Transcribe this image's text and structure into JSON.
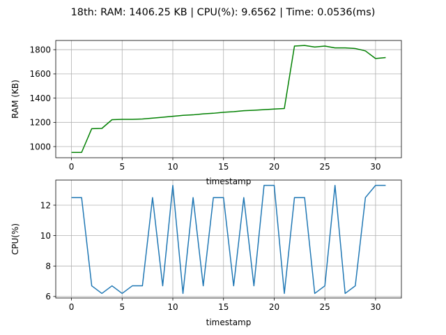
{
  "figure": {
    "title": "18th: RAM: 1406.25 KB | CPU(%): 9.6562 | Time: 0.0536(ms)"
  },
  "chart_data": [
    {
      "type": "line",
      "xlabel": "timestamp",
      "ylabel": "RAM (KB)",
      "xlim": [
        -1.55,
        32.55
      ],
      "ylim": [
        908,
        1876
      ],
      "xticks": [
        0,
        5,
        10,
        15,
        20,
        25,
        30
      ],
      "yticks": [
        1000,
        1200,
        1400,
        1600,
        1800
      ],
      "grid": true,
      "color": "#008000",
      "x": [
        0,
        1,
        2,
        3,
        4,
        5,
        6,
        7,
        8,
        9,
        10,
        11,
        12,
        13,
        14,
        15,
        16,
        17,
        18,
        19,
        20,
        21,
        22,
        23,
        24,
        25,
        26,
        27,
        28,
        29,
        30,
        31
      ],
      "values": [
        952,
        952,
        1148,
        1150,
        1222,
        1225,
        1225,
        1228,
        1235,
        1242,
        1250,
        1258,
        1262,
        1270,
        1275,
        1283,
        1288,
        1296,
        1300,
        1305,
        1310,
        1314,
        1830,
        1835,
        1822,
        1830,
        1815,
        1815,
        1810,
        1790,
        1727,
        1735
      ]
    },
    {
      "type": "line",
      "xlabel": "timestamp",
      "ylabel": "CPU(%)",
      "xlim": [
        -1.55,
        32.55
      ],
      "ylim": [
        5.9,
        13.65
      ],
      "xticks": [
        0,
        5,
        10,
        15,
        20,
        25,
        30
      ],
      "yticks": [
        6,
        8,
        10,
        12
      ],
      "grid": true,
      "color": "#1f77b4",
      "x": [
        0,
        1,
        2,
        3,
        4,
        5,
        6,
        7,
        8,
        9,
        10,
        11,
        12,
        13,
        14,
        15,
        16,
        17,
        18,
        19,
        20,
        21,
        22,
        23,
        24,
        25,
        26,
        27,
        28,
        29,
        30,
        31
      ],
      "values": [
        12.5,
        12.5,
        6.7,
        6.2,
        6.7,
        6.2,
        6.7,
        6.7,
        12.5,
        6.7,
        13.3,
        6.2,
        12.5,
        6.7,
        12.5,
        12.5,
        6.7,
        12.5,
        6.7,
        13.3,
        13.3,
        6.2,
        12.5,
        12.5,
        6.2,
        6.7,
        13.3,
        6.2,
        6.7,
        12.5,
        13.3,
        13.3
      ]
    }
  ]
}
